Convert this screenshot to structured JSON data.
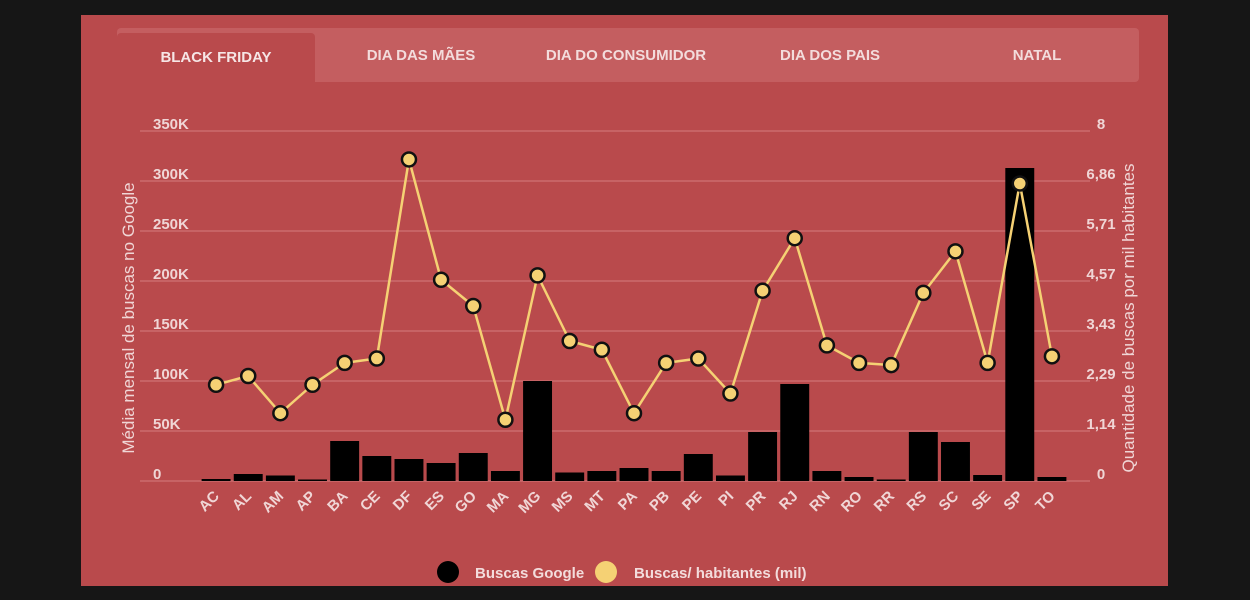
{
  "tabs": [
    {
      "label": "BLACK FRIDAY",
      "active": true
    },
    {
      "label": "DIA DAS MÃES",
      "active": false
    },
    {
      "label": "DIA DO CONSUMIDOR",
      "active": false
    },
    {
      "label": "DIA DOS PAIS",
      "active": false
    },
    {
      "label": "NATAL",
      "active": false
    }
  ],
  "colors": {
    "panel_bg": "#b94a4c",
    "bar": "#000000",
    "line": "#f5d174",
    "gridline": "#d57c7e",
    "text": "#f0d6d6"
  },
  "chart_data": {
    "type": "bar",
    "categories": [
      "AC",
      "AL",
      "AM",
      "AP",
      "BA",
      "CE",
      "DF",
      "ES",
      "GO",
      "MA",
      "MG",
      "MS",
      "MT",
      "PA",
      "PB",
      "PE",
      "PI",
      "PR",
      "RJ",
      "RN",
      "RO",
      "RR",
      "RS",
      "SC",
      "SE",
      "SP",
      "TO"
    ],
    "series": [
      {
        "name": "Buscas Google",
        "type": "bar",
        "axis": "left",
        "values": [
          2000,
          7000,
          5500,
          1500,
          40000,
          25000,
          22000,
          18000,
          28000,
          10000,
          100000,
          8500,
          10000,
          13000,
          10000,
          27000,
          5500,
          49000,
          97000,
          10000,
          4000,
          1500,
          49000,
          39000,
          6000,
          313000,
          4000
        ]
      },
      {
        "name": "Buscas/ habitantes (mil)",
        "type": "line",
        "axis": "right",
        "values": [
          2.2,
          2.4,
          1.55,
          2.2,
          2.7,
          2.8,
          7.35,
          4.6,
          4.0,
          1.4,
          4.7,
          3.2,
          3.0,
          1.55,
          2.7,
          2.8,
          2.0,
          4.35,
          5.55,
          3.1,
          2.7,
          2.65,
          4.3,
          5.25,
          2.7,
          6.8,
          2.85
        ]
      }
    ],
    "y_left": {
      "label": "Média mensal de buscas no Google",
      "ylim": [
        0,
        350000
      ],
      "ticks": [
        0,
        50000,
        100000,
        150000,
        200000,
        250000,
        300000,
        350000
      ],
      "tick_labels": [
        "0",
        "50K",
        "100K",
        "150K",
        "200K",
        "250K",
        "300K",
        "350K"
      ]
    },
    "y_right": {
      "label": "Quantidade de buscas por mil habitantes",
      "ylim": [
        0,
        8
      ],
      "ticks": [
        0,
        1.142857,
        2.285714,
        3.428571,
        4.571429,
        5.714286,
        6.857143,
        8
      ],
      "tick_labels": [
        "0",
        "1,14",
        "2,29",
        "3,43",
        "4,57",
        "5,71",
        "6,86",
        "8"
      ]
    },
    "grid": true,
    "legend": {
      "placement": "bottom-center",
      "items": [
        "Buscas Google",
        "Buscas/ habitantes (mil)"
      ]
    }
  }
}
